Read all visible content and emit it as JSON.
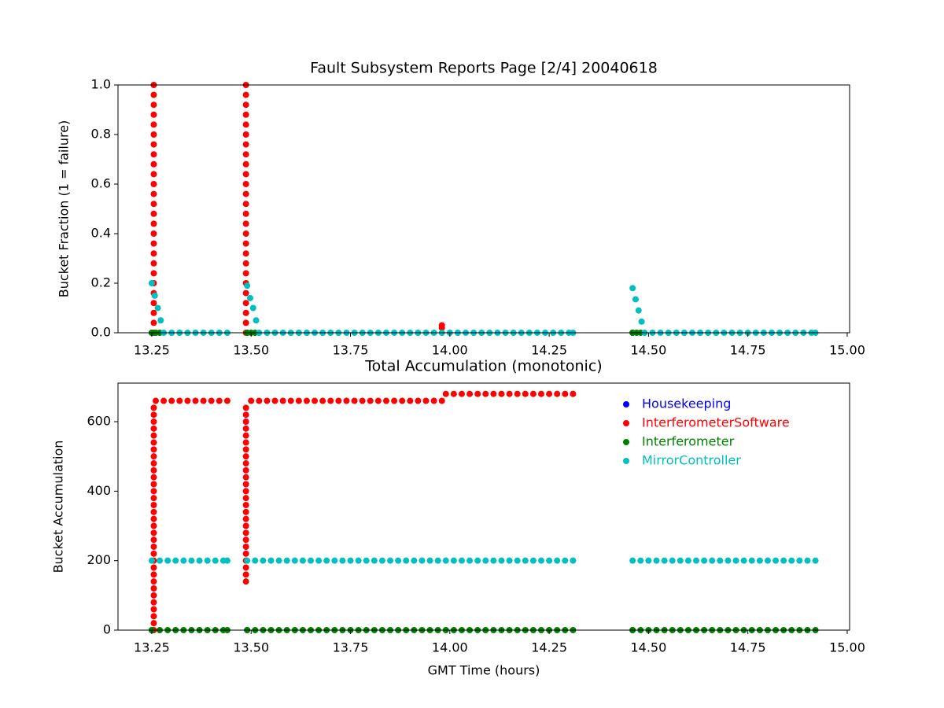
{
  "chart_data": [
    {
      "type": "scatter",
      "title": "Fault Subsystem Reports Page [2/4] 20040618",
      "y_label": "Bucket Fraction (1 = failure)",
      "xlim": [
        13.165,
        15.006
      ],
      "ylim": [
        0,
        1
      ],
      "xticks": [
        13.25,
        {
          "value": 13.5,
          "label": "13.50"
        },
        13.75,
        {
          "value": 14,
          "label": "14.00"
        },
        14.25,
        {
          "value": 14.5,
          "label": "14.50"
        },
        14.75,
        {
          "value": 15,
          "label": "15.00"
        }
      ],
      "yticks": [
        {
          "value": 0,
          "label": "0.0"
        },
        0.2,
        0.4,
        0.6,
        0.8,
        {
          "value": 1,
          "label": "1.0"
        }
      ],
      "series": [
        {
          "name": "Housekeeping",
          "color": "#0000ff",
          "x": [
            13.25,
            13.49,
            14.46
          ],
          "values": [
            0,
            0,
            0
          ]
        },
        {
          "name": "InterferometerSoftware",
          "color": "#ff0000",
          "x": [
            13.255,
            13.255,
            13.255,
            13.255,
            13.255,
            13.255,
            13.255,
            13.255,
            13.255,
            13.255,
            13.255,
            13.255,
            13.255,
            13.255,
            13.255,
            13.255,
            13.255,
            13.255,
            13.255,
            13.255,
            13.255,
            13.255,
            13.255,
            13.255,
            13.255,
            13.255,
            13.487,
            13.487,
            13.487,
            13.487,
            13.487,
            13.487,
            13.487,
            13.487,
            13.487,
            13.487,
            13.487,
            13.487,
            13.487,
            13.487,
            13.487,
            13.487,
            13.487,
            13.487,
            13.487,
            13.487,
            13.487,
            13.487,
            13.487,
            13.487,
            13.487,
            13.487,
            13.98,
            13.98
          ],
          "values": [
            0,
            0.04,
            0.08,
            0.12,
            0.16,
            0.2,
            0.24,
            0.28,
            0.32,
            0.36,
            0.4,
            0.44,
            0.48,
            0.52,
            0.56,
            0.6,
            0.64,
            0.68,
            0.72,
            0.76,
            0.8,
            0.84,
            0.88,
            0.92,
            0.96,
            1.0,
            0,
            0.04,
            0.08,
            0.12,
            0.16,
            0.2,
            0.24,
            0.28,
            0.32,
            0.36,
            0.4,
            0.44,
            0.48,
            0.52,
            0.56,
            0.6,
            0.64,
            0.68,
            0.72,
            0.76,
            0.8,
            0.84,
            0.88,
            0.92,
            0.96,
            1.0,
            0.02,
            0.03
          ]
        },
        {
          "name": "Interferometer",
          "color": "#008000",
          "x": [
            13.25,
            13.26,
            13.27,
            13.49,
            13.5,
            13.51,
            14.46,
            14.47,
            14.48
          ],
          "values": [
            0,
            0,
            0,
            0,
            0,
            0,
            0,
            0,
            0
          ]
        },
        {
          "name": "MirrorController",
          "color": "#00bfbf",
          "x": [
            13.25,
            13.2575,
            13.265,
            13.2725,
            13.28,
            13.3,
            13.32,
            13.34,
            13.36,
            13.38,
            13.4,
            13.42,
            13.44,
            13.49,
            13.4975,
            13.505,
            13.5125,
            13.52,
            13.54,
            13.56,
            13.58,
            13.6,
            13.62,
            13.64,
            13.66,
            13.68,
            13.7,
            13.72,
            13.74,
            13.76,
            13.78,
            13.8,
            13.82,
            13.84,
            13.86,
            13.88,
            13.9,
            13.92,
            13.94,
            13.96,
            13.98,
            14.0,
            14.02,
            14.04,
            14.06,
            14.08,
            14.1,
            14.12,
            14.14,
            14.16,
            14.18,
            14.2,
            14.22,
            14.24,
            14.26,
            14.28,
            14.3,
            14.31,
            14.46,
            14.4675,
            14.475,
            14.4825,
            14.49,
            14.51,
            14.53,
            14.55,
            14.57,
            14.59,
            14.61,
            14.63,
            14.65,
            14.67,
            14.69,
            14.71,
            14.73,
            14.75,
            14.77,
            14.79,
            14.81,
            14.83,
            14.85,
            14.87,
            14.89,
            14.91,
            14.92
          ],
          "values": [
            0.2,
            0.15,
            0.1,
            0.05,
            0,
            0,
            0,
            0,
            0,
            0,
            0,
            0,
            0,
            0.19,
            0.14,
            0.1,
            0.05,
            0,
            0,
            0,
            0,
            0,
            0,
            0,
            0,
            0,
            0,
            0,
            0,
            0,
            0,
            0,
            0,
            0,
            0,
            0,
            0,
            0,
            0,
            0,
            0,
            0,
            0,
            0,
            0,
            0,
            0,
            0,
            0,
            0,
            0,
            0,
            0,
            0,
            0,
            0,
            0,
            0,
            0.18,
            0.135,
            0.09,
            0.045,
            0,
            0,
            0,
            0,
            0,
            0,
            0,
            0,
            0,
            0,
            0,
            0,
            0,
            0,
            0,
            0,
            0,
            0,
            0,
            0,
            0,
            0,
            0
          ]
        }
      ]
    },
    {
      "type": "scatter",
      "title": "Total Accumulation (monotonic)",
      "y_label": "Bucket Accumulation",
      "x_label": "GMT Time (hours)",
      "xlim": [
        13.165,
        15.006
      ],
      "ylim": [
        0,
        711
      ],
      "xticks": [
        13.25,
        {
          "value": 13.5,
          "label": "13.50"
        },
        13.75,
        {
          "value": 14,
          "label": "14.00"
        },
        14.25,
        {
          "value": 14.5,
          "label": "14.50"
        },
        14.75,
        {
          "value": 15,
          "label": "15.00"
        }
      ],
      "yticks": [
        0,
        200,
        400,
        600
      ],
      "legend": "upper right",
      "series": [
        {
          "name": "Housekeeping",
          "color": "#0000ff",
          "x": [
            13.25,
            13.49,
            14.46
          ],
          "values": [
            0,
            0,
            0
          ]
        },
        {
          "name": "InterferometerSoftware",
          "color": "#ff0000",
          "x": [
            13.255,
            13.255,
            13.255,
            13.255,
            13.255,
            13.255,
            13.255,
            13.255,
            13.255,
            13.255,
            13.255,
            13.255,
            13.255,
            13.255,
            13.255,
            13.255,
            13.255,
            13.255,
            13.255,
            13.255,
            13.255,
            13.255,
            13.255,
            13.255,
            13.255,
            13.255,
            13.255,
            13.255,
            13.255,
            13.255,
            13.255,
            13.255,
            13.255,
            13.26,
            13.28,
            13.3,
            13.32,
            13.34,
            13.36,
            13.38,
            13.4,
            13.42,
            13.44,
            13.487,
            13.487,
            13.487,
            13.487,
            13.487,
            13.487,
            13.487,
            13.487,
            13.487,
            13.487,
            13.487,
            13.487,
            13.487,
            13.487,
            13.487,
            13.487,
            13.487,
            13.487,
            13.487,
            13.487,
            13.487,
            13.487,
            13.487,
            13.487,
            13.487,
            13.487,
            13.5,
            13.52,
            13.54,
            13.56,
            13.58,
            13.6,
            13.62,
            13.64,
            13.66,
            13.68,
            13.7,
            13.72,
            13.74,
            13.76,
            13.78,
            13.8,
            13.82,
            13.84,
            13.86,
            13.88,
            13.9,
            13.92,
            13.94,
            13.96,
            13.98,
            13.99,
            14.01,
            14.03,
            14.05,
            14.07,
            14.09,
            14.11,
            14.13,
            14.15,
            14.17,
            14.19,
            14.21,
            14.23,
            14.25,
            14.27,
            14.29,
            14.31
          ],
          "values": [
            0,
            20,
            40,
            60,
            80,
            100,
            120,
            140,
            160,
            180,
            200,
            220,
            240,
            260,
            280,
            300,
            320,
            340,
            360,
            380,
            400,
            420,
            440,
            460,
            480,
            500,
            520,
            540,
            560,
            580,
            600,
            620,
            640,
            660,
            660,
            660,
            660,
            660,
            660,
            660,
            660,
            660,
            660,
            140,
            160,
            180,
            200,
            220,
            240,
            260,
            280,
            300,
            320,
            340,
            360,
            380,
            400,
            420,
            440,
            460,
            480,
            500,
            520,
            540,
            560,
            580,
            600,
            620,
            640,
            660,
            660,
            660,
            660,
            660,
            660,
            660,
            660,
            660,
            660,
            660,
            660,
            660,
            660,
            660,
            660,
            660,
            660,
            660,
            660,
            660,
            660,
            660,
            660,
            660,
            680,
            680,
            680,
            680,
            680,
            680,
            680,
            680,
            680,
            680,
            680,
            680,
            680,
            680,
            680,
            680,
            680
          ]
        },
        {
          "name": "Interferometer",
          "color": "#008000",
          "x": [
            13.25,
            13.27,
            13.29,
            13.31,
            13.33,
            13.35,
            13.37,
            13.39,
            13.41,
            13.43,
            13.44,
            13.49,
            13.51,
            13.53,
            13.55,
            13.57,
            13.59,
            13.61,
            13.63,
            13.65,
            13.67,
            13.69,
            13.71,
            13.73,
            13.75,
            13.77,
            13.79,
            13.81,
            13.83,
            13.85,
            13.87,
            13.89,
            13.91,
            13.93,
            13.95,
            13.97,
            13.99,
            14.01,
            14.03,
            14.05,
            14.07,
            14.09,
            14.11,
            14.13,
            14.15,
            14.17,
            14.19,
            14.21,
            14.23,
            14.25,
            14.27,
            14.29,
            14.31,
            14.46,
            14.48,
            14.5,
            14.52,
            14.54,
            14.56,
            14.58,
            14.6,
            14.62,
            14.64,
            14.66,
            14.68,
            14.7,
            14.72,
            14.74,
            14.76,
            14.78,
            14.8,
            14.82,
            14.84,
            14.86,
            14.88,
            14.9,
            14.92
          ],
          "values": [
            0,
            0,
            0,
            0,
            0,
            0,
            0,
            0,
            0,
            0,
            0,
            0,
            0,
            0,
            0,
            0,
            0,
            0,
            0,
            0,
            0,
            0,
            0,
            0,
            0,
            0,
            0,
            0,
            0,
            0,
            0,
            0,
            0,
            0,
            0,
            0,
            0,
            0,
            0,
            0,
            0,
            0,
            0,
            0,
            0,
            0,
            0,
            0,
            0,
            0,
            0,
            0,
            0,
            0,
            0,
            0,
            0,
            0,
            0,
            0,
            0,
            0,
            0,
            0,
            0,
            0,
            0,
            0,
            0,
            0,
            0,
            0,
            0,
            0,
            0,
            0,
            0
          ]
        },
        {
          "name": "MirrorController",
          "color": "#00bfbf",
          "x": [
            13.25,
            13.27,
            13.29,
            13.31,
            13.33,
            13.35,
            13.37,
            13.39,
            13.41,
            13.43,
            13.44,
            13.49,
            13.51,
            13.53,
            13.55,
            13.57,
            13.59,
            13.61,
            13.63,
            13.65,
            13.67,
            13.69,
            13.71,
            13.73,
            13.75,
            13.77,
            13.79,
            13.81,
            13.83,
            13.85,
            13.87,
            13.89,
            13.91,
            13.93,
            13.95,
            13.97,
            13.99,
            14.01,
            14.03,
            14.05,
            14.07,
            14.09,
            14.11,
            14.13,
            14.15,
            14.17,
            14.19,
            14.21,
            14.23,
            14.25,
            14.27,
            14.29,
            14.31,
            14.46,
            14.48,
            14.5,
            14.52,
            14.54,
            14.56,
            14.58,
            14.6,
            14.62,
            14.64,
            14.66,
            14.68,
            14.7,
            14.72,
            14.74,
            14.76,
            14.78,
            14.8,
            14.82,
            14.84,
            14.86,
            14.88,
            14.9,
            14.92
          ],
          "values": [
            200,
            200,
            200,
            200,
            200,
            200,
            200,
            200,
            200,
            200,
            200,
            200,
            200,
            200,
            200,
            200,
            200,
            200,
            200,
            200,
            200,
            200,
            200,
            200,
            200,
            200,
            200,
            200,
            200,
            200,
            200,
            200,
            200,
            200,
            200,
            200,
            200,
            200,
            200,
            200,
            200,
            200,
            200,
            200,
            200,
            200,
            200,
            200,
            200,
            200,
            200,
            200,
            200,
            200,
            200,
            200,
            200,
            200,
            200,
            200,
            200,
            200,
            200,
            200,
            200,
            200,
            200,
            200,
            200,
            200,
            200,
            200,
            200,
            200,
            200,
            200,
            200
          ]
        }
      ]
    }
  ]
}
